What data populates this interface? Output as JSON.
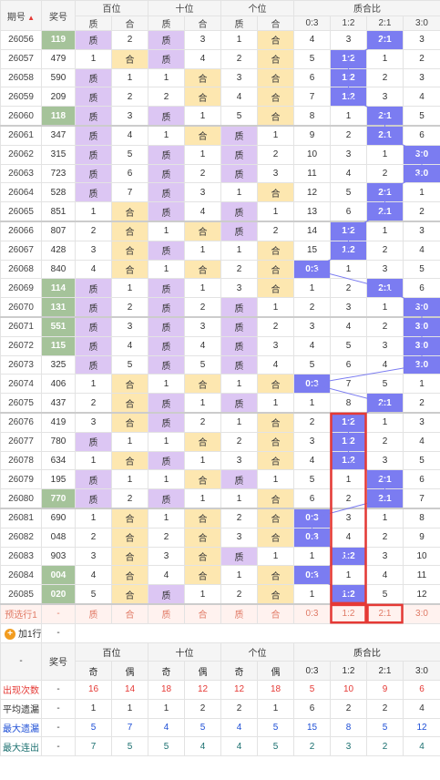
{
  "header": {
    "issue_label": "期号",
    "prize_label": "奖号",
    "groups": [
      "百位",
      "十位",
      "个位",
      "质合比"
    ],
    "sub": [
      "质",
      "合",
      "质",
      "合",
      "质",
      "合",
      "0:3",
      "1:2",
      "2:1",
      "3:0"
    ]
  },
  "rows": [
    {
      "issue": "26056",
      "num": "119",
      "numHL": true,
      "c": [
        "质",
        "2",
        "质",
        "3",
        "1",
        "合"
      ],
      "r": [
        "4",
        "3",
        "2:1",
        "3"
      ],
      "rHL": 2
    },
    {
      "issue": "26057",
      "num": "479",
      "numHL": false,
      "c": [
        "1",
        "合",
        "质",
        "4",
        "2",
        "合"
      ],
      "r": [
        "5",
        "1:2",
        "1",
        "2"
      ],
      "rHL": 1
    },
    {
      "issue": "26058",
      "num": "590",
      "numHL": false,
      "c": [
        "质",
        "1",
        "1",
        "合",
        "3",
        "合"
      ],
      "r": [
        "6",
        "1:2",
        "2",
        "3"
      ],
      "rHL": 1
    },
    {
      "issue": "26059",
      "num": "209",
      "numHL": false,
      "c": [
        "质",
        "2",
        "2",
        "合",
        "4",
        "合"
      ],
      "r": [
        "7",
        "1:2",
        "3",
        "4"
      ],
      "rHL": 1
    },
    {
      "issue": "26060",
      "num": "118",
      "numHL": true,
      "c": [
        "质",
        "3",
        "质",
        "1",
        "5",
        "合"
      ],
      "r": [
        "8",
        "1",
        "2:1",
        "5"
      ],
      "rHL": 2
    },
    {
      "issue": "26061",
      "num": "347",
      "numHL": false,
      "c": [
        "质",
        "4",
        "1",
        "合",
        "质",
        "1"
      ],
      "r": [
        "9",
        "2",
        "2:1",
        "6"
      ],
      "rHL": 2
    },
    {
      "issue": "26062",
      "num": "315",
      "numHL": false,
      "c": [
        "质",
        "5",
        "质",
        "1",
        "质",
        "2"
      ],
      "r": [
        "10",
        "3",
        "1",
        "3:0"
      ],
      "rHL": 3
    },
    {
      "issue": "26063",
      "num": "723",
      "numHL": false,
      "c": [
        "质",
        "6",
        "质",
        "2",
        "质",
        "3"
      ],
      "r": [
        "11",
        "4",
        "2",
        "3:0"
      ],
      "rHL": 3
    },
    {
      "issue": "26064",
      "num": "528",
      "numHL": false,
      "c": [
        "质",
        "7",
        "质",
        "3",
        "1",
        "合"
      ],
      "r": [
        "12",
        "5",
        "2:1",
        "1"
      ],
      "rHL": 2
    },
    {
      "issue": "26065",
      "num": "851",
      "numHL": false,
      "c": [
        "1",
        "合",
        "质",
        "4",
        "质",
        "1"
      ],
      "r": [
        "13",
        "6",
        "2:1",
        "2"
      ],
      "rHL": 2
    },
    {
      "issue": "26066",
      "num": "807",
      "numHL": false,
      "c": [
        "2",
        "合",
        "1",
        "合",
        "质",
        "2"
      ],
      "r": [
        "14",
        "1:2",
        "1",
        "3"
      ],
      "rHL": 1
    },
    {
      "issue": "26067",
      "num": "428",
      "numHL": false,
      "c": [
        "3",
        "合",
        "质",
        "1",
        "1",
        "合"
      ],
      "r": [
        "15",
        "1:2",
        "2",
        "4"
      ],
      "rHL": 1
    },
    {
      "issue": "26068",
      "num": "840",
      "numHL": false,
      "c": [
        "4",
        "合",
        "1",
        "合",
        "2",
        "合"
      ],
      "r": [
        "0:3",
        "1",
        "3",
        "5"
      ],
      "rHL": 0
    },
    {
      "issue": "26069",
      "num": "114",
      "numHL": true,
      "c": [
        "质",
        "1",
        "质",
        "1",
        "3",
        "合"
      ],
      "r": [
        "1",
        "2",
        "2:1",
        "6"
      ],
      "rHL": 2
    },
    {
      "issue": "26070",
      "num": "131",
      "numHL": true,
      "c": [
        "质",
        "2",
        "质",
        "2",
        "质",
        "1"
      ],
      "r": [
        "2",
        "3",
        "1",
        "3:0"
      ],
      "rHL": 3
    },
    {
      "issue": "26071",
      "num": "551",
      "numHL": true,
      "c": [
        "质",
        "3",
        "质",
        "3",
        "质",
        "2"
      ],
      "r": [
        "3",
        "4",
        "2",
        "3:0"
      ],
      "rHL": 3
    },
    {
      "issue": "26072",
      "num": "115",
      "numHL": true,
      "c": [
        "质",
        "4",
        "质",
        "4",
        "质",
        "3"
      ],
      "r": [
        "4",
        "5",
        "3",
        "3:0"
      ],
      "rHL": 3
    },
    {
      "issue": "26073",
      "num": "325",
      "numHL": false,
      "c": [
        "质",
        "5",
        "质",
        "5",
        "质",
        "4"
      ],
      "r": [
        "5",
        "6",
        "4",
        "3:0"
      ],
      "rHL": 3
    },
    {
      "issue": "26074",
      "num": "406",
      "numHL": false,
      "c": [
        "1",
        "合",
        "1",
        "合",
        "1",
        "合"
      ],
      "r": [
        "0:3",
        "7",
        "5",
        "1"
      ],
      "rHL": 0
    },
    {
      "issue": "26075",
      "num": "437",
      "numHL": false,
      "c": [
        "2",
        "合",
        "质",
        "1",
        "质",
        "1"
      ],
      "r": [
        "1",
        "8",
        "2:1",
        "2"
      ],
      "rHL": 2
    },
    {
      "issue": "26076",
      "num": "419",
      "numHL": false,
      "c": [
        "3",
        "合",
        "质",
        "2",
        "1",
        "合"
      ],
      "r": [
        "2",
        "1:2",
        "1",
        "3"
      ],
      "rHL": 1
    },
    {
      "issue": "26077",
      "num": "780",
      "numHL": false,
      "c": [
        "质",
        "1",
        "1",
        "合",
        "2",
        "合"
      ],
      "r": [
        "3",
        "1:2",
        "2",
        "4"
      ],
      "rHL": 1
    },
    {
      "issue": "26078",
      "num": "634",
      "numHL": false,
      "c": [
        "1",
        "合",
        "质",
        "1",
        "3",
        "合"
      ],
      "r": [
        "4",
        "1:2",
        "3",
        "5"
      ],
      "rHL": 1
    },
    {
      "issue": "26079",
      "num": "195",
      "numHL": false,
      "c": [
        "质",
        "1",
        "1",
        "合",
        "质",
        "1"
      ],
      "r": [
        "5",
        "1",
        "2:1",
        "6"
      ],
      "rHL": 2
    },
    {
      "issue": "26080",
      "num": "770",
      "numHL": true,
      "c": [
        "质",
        "2",
        "质",
        "1",
        "1",
        "合"
      ],
      "r": [
        "6",
        "2",
        "2:1",
        "7"
      ],
      "rHL": 2
    },
    {
      "issue": "26081",
      "num": "690",
      "numHL": false,
      "c": [
        "1",
        "合",
        "1",
        "合",
        "2",
        "合"
      ],
      "r": [
        "0:3",
        "3",
        "1",
        "8"
      ],
      "rHL": 0
    },
    {
      "issue": "26082",
      "num": "048",
      "numHL": false,
      "c": [
        "2",
        "合",
        "2",
        "合",
        "3",
        "合"
      ],
      "r": [
        "0:3",
        "4",
        "2",
        "9"
      ],
      "rHL": 0
    },
    {
      "issue": "26083",
      "num": "903",
      "numHL": false,
      "c": [
        "3",
        "合",
        "3",
        "合",
        "质",
        "1"
      ],
      "r": [
        "1",
        "1:2",
        "3",
        "10"
      ],
      "rHL": 1
    },
    {
      "issue": "26084",
      "num": "004",
      "numHL": true,
      "c": [
        "4",
        "合",
        "4",
        "合",
        "1",
        "合"
      ],
      "r": [
        "0:3",
        "1",
        "4",
        "11"
      ],
      "rHL": 0
    },
    {
      "issue": "26085",
      "num": "020",
      "numHL": true,
      "c": [
        "5",
        "合",
        "质",
        "1",
        "2",
        "合"
      ],
      "r": [
        "1",
        "1:2",
        "5",
        "12"
      ],
      "rHL": 1
    }
  ],
  "preselect": {
    "label": "预选行1",
    "num": "-",
    "c": [
      "质",
      "合",
      "质",
      "合",
      "质",
      "合"
    ],
    "r": [
      "0:3",
      "1:2",
      "2:1",
      "3:0"
    ]
  },
  "add_row": {
    "label": "加1行",
    "num": "-"
  },
  "footer": {
    "dash": "-",
    "prize_label": "奖号",
    "groups": [
      "百位",
      "十位",
      "个位",
      "质合比"
    ],
    "sub": [
      "奇",
      "偶",
      "奇",
      "偶",
      "奇",
      "偶",
      "0:3",
      "1:2",
      "2:1",
      "3:0"
    ]
  },
  "stats": [
    {
      "label": "出现次数",
      "num": "-",
      "v": [
        "16",
        "14",
        "18",
        "12",
        "12",
        "18",
        "5",
        "10",
        "9",
        "6"
      ],
      "cls": "red"
    },
    {
      "label": "平均遗漏",
      "num": "-",
      "v": [
        "1",
        "1",
        "1",
        "2",
        "2",
        "1",
        "6",
        "2",
        "2",
        "4"
      ],
      "cls": "dark"
    },
    {
      "label": "最大遗漏",
      "num": "-",
      "v": [
        "5",
        "7",
        "4",
        "5",
        "4",
        "5",
        "15",
        "8",
        "5",
        "12"
      ],
      "cls": "blue"
    },
    {
      "label": "最大连出",
      "num": "-",
      "v": [
        "7",
        "5",
        "5",
        "4",
        "4",
        "5",
        "2",
        "3",
        "2",
        "4"
      ],
      "cls": "teal"
    }
  ],
  "colors": {
    "prime": "#dcc6f3",
    "composite": "#fde7b0",
    "prize_highlight": "#a5c39a",
    "ratio_highlight": "#7b7cf1",
    "marker": "#e53935"
  }
}
